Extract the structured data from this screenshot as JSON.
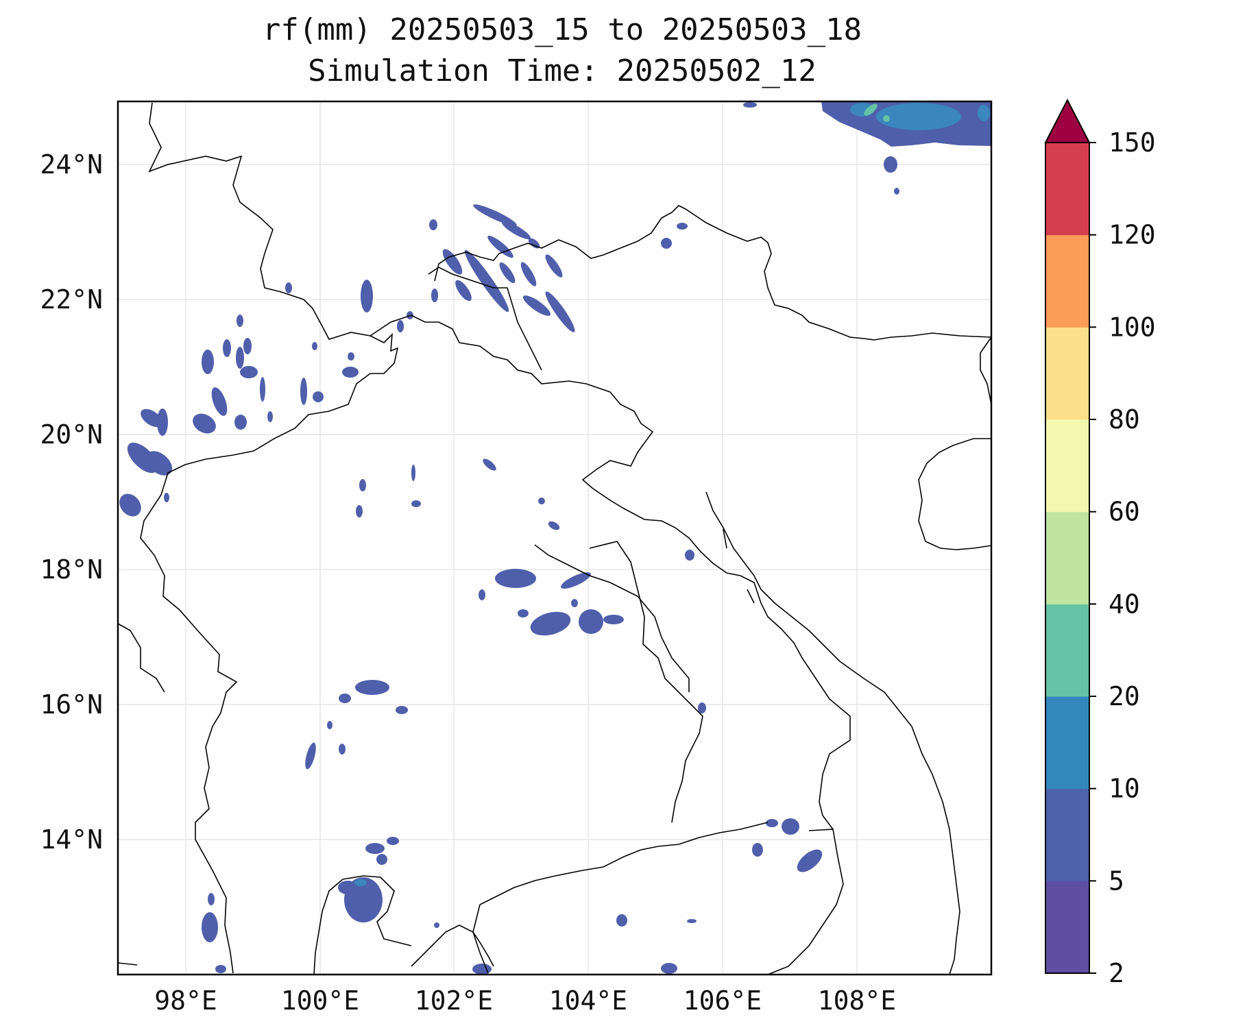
{
  "title_line1": "rf(mm) 20250503_15 to 20250503_18",
  "title_line2": "Simulation Time: 20250502_12",
  "map": {
    "lon_ticks": [
      "98°E",
      "100°E",
      "102°E",
      "104°E",
      "106°E",
      "108°E"
    ],
    "lat_ticks": [
      "24°N",
      "22°N",
      "20°N",
      "18°N",
      "16°N",
      "14°N"
    ],
    "lon_range": [
      97.0,
      110.0
    ],
    "lat_range": [
      12.0,
      25.0
    ],
    "gridlines": true
  },
  "colorbar": {
    "levels": [
      "2",
      "5",
      "10",
      "20",
      "40",
      "60",
      "80",
      "100",
      "120",
      "150"
    ],
    "colors": [
      "#5e4fa2",
      "#4f62ae",
      "#3288bd",
      "#66c2a5",
      "#bfe5a0",
      "#f2f8b0",
      "#fce08a",
      "#fb9c59",
      "#d53e4f",
      "#9e0142"
    ],
    "extend": "max"
  }
}
